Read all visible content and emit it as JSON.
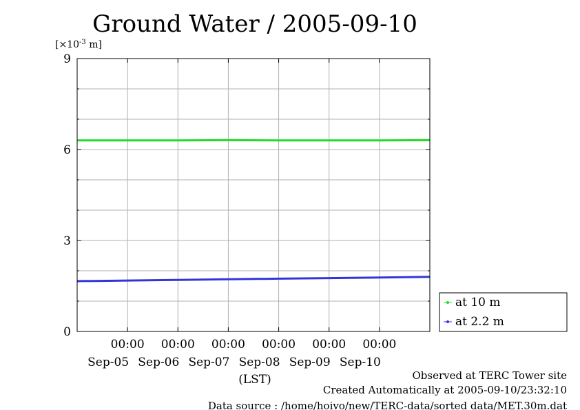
{
  "chart_data": {
    "type": "line",
    "title": "Ground Water / 2005-09-10",
    "ylabel_unit": "[×10",
    "ylabel_unit_exp": "-3",
    "ylabel_unit_suffix": " m]",
    "xlabel": "(LST)",
    "x_start": "2005-09-04T00:00",
    "x_end": "2005-09-11T00:00",
    "ylim": [
      0,
      9
    ],
    "y_ticks": [
      "0",
      "3",
      "6",
      "9"
    ],
    "x_ticks": [
      {
        "time": "00:00",
        "date": "Sep-05",
        "x": "2005-09-05T00:00"
      },
      {
        "time": "00:00",
        "date": "Sep-06",
        "x": "2005-09-06T00:00"
      },
      {
        "time": "00:00",
        "date": "Sep-07",
        "x": "2005-09-07T00:00"
      },
      {
        "time": "00:00",
        "date": "Sep-08",
        "x": "2005-09-08T00:00"
      },
      {
        "time": "00:00",
        "date": "Sep-09",
        "x": "2005-09-09T00:00"
      },
      {
        "time": "00:00",
        "date": "Sep-10",
        "x": "2005-09-10T00:00"
      }
    ],
    "grid": true,
    "legend_position": "lower-right-outside",
    "series": [
      {
        "name": "at 10 m",
        "color": "#22dd22",
        "x": [
          "2005-09-04T00:00",
          "2005-09-05T00:00",
          "2005-09-06T00:00",
          "2005-09-07T00:00",
          "2005-09-08T00:00",
          "2005-09-09T00:00",
          "2005-09-10T00:00",
          "2005-09-11T00:00"
        ],
        "y": [
          6.3,
          6.3,
          6.3,
          6.31,
          6.3,
          6.3,
          6.3,
          6.31
        ]
      },
      {
        "name": "at 2.2 m",
        "color": "#3333dd",
        "x": [
          "2005-09-04T00:00",
          "2005-09-05T00:00",
          "2005-09-06T00:00",
          "2005-09-07T00:00",
          "2005-09-08T00:00",
          "2005-09-09T00:00",
          "2005-09-10T00:00",
          "2005-09-11T00:00"
        ],
        "y": [
          1.66,
          1.68,
          1.7,
          1.72,
          1.74,
          1.76,
          1.78,
          1.8
        ]
      }
    ]
  },
  "footer": {
    "observed": "Observed at TERC Tower site",
    "created": "Created Automatically at 2005-09-10/23:32:10",
    "source": "Data source : /home/hoivo/new/TERC-data/sorted  data/MET.30m.dat"
  }
}
